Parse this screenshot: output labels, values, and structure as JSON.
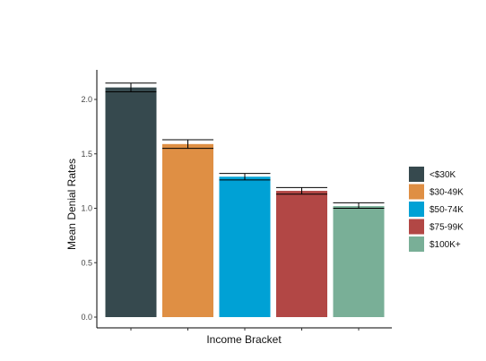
{
  "chart_data": {
    "type": "bar",
    "title": "",
    "xlabel": "Income Bracket",
    "ylabel": "Mean Denial Rates",
    "categories": [
      "<$30K",
      "$30-49K",
      "$50-74K",
      "$75-99K",
      "$100K+"
    ],
    "values": [
      2.11,
      1.59,
      1.29,
      1.16,
      1.02
    ],
    "error_low": [
      2.07,
      1.55,
      1.26,
      1.13,
      1.0
    ],
    "error_high": [
      2.15,
      1.63,
      1.32,
      1.19,
      1.05
    ],
    "colors": [
      "#36494e",
      "#df8f44",
      "#00a1d5",
      "#b24745",
      "#79af97"
    ],
    "ylim": [
      0,
      2.2
    ],
    "yticks": [
      0,
      0.5,
      1,
      1.5,
      2
    ],
    "ytick_labels": [
      "0.0",
      "0.5",
      "1.0",
      "1.5",
      "2.0"
    ],
    "grid": false,
    "legend": {
      "position": "right",
      "entries": [
        "<$30K",
        "$30-49K",
        "$50-74K",
        "$75-99K",
        "$100K+"
      ]
    }
  }
}
